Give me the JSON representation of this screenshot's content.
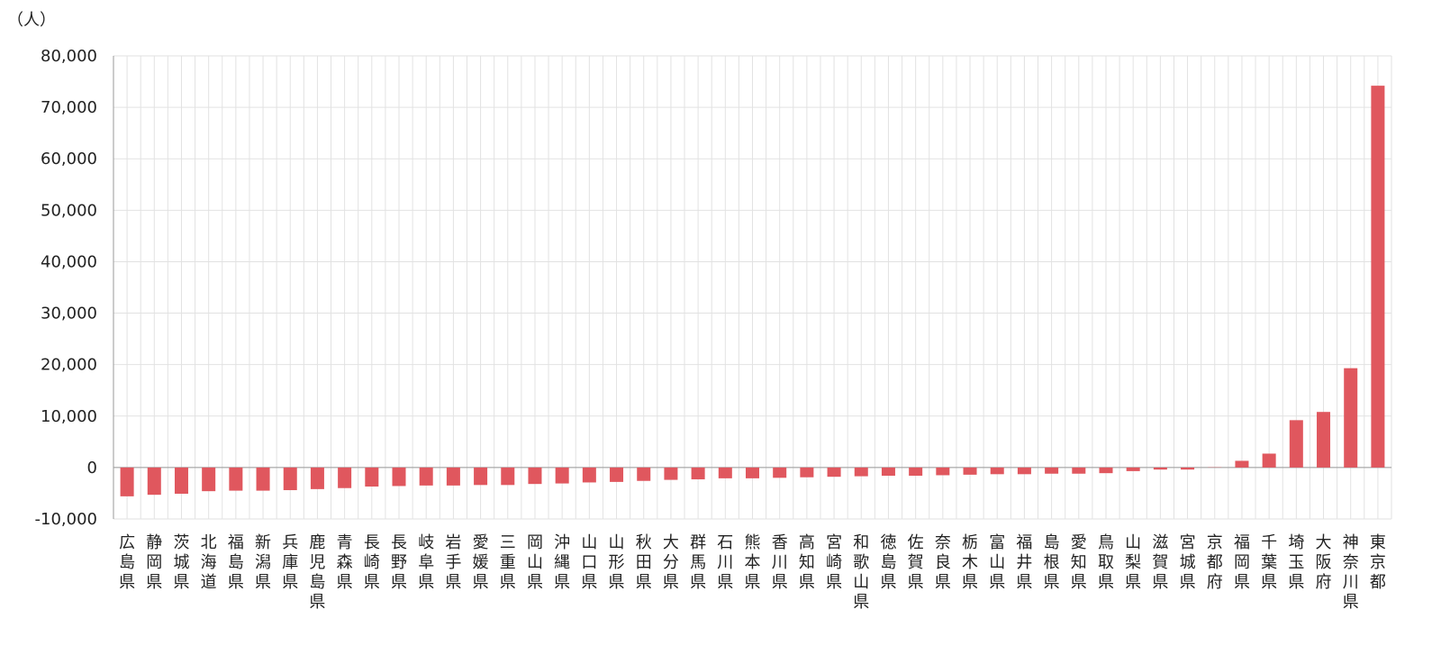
{
  "chart_data": {
    "type": "bar",
    "y_unit_label": "（人）",
    "categories": [
      "広島県",
      "静岡県",
      "茨城県",
      "北海道",
      "福島県",
      "新潟県",
      "兵庫県",
      "鹿児島県",
      "青森県",
      "長崎県",
      "長野県",
      "岐阜県",
      "岩手県",
      "愛媛県",
      "三重県",
      "岡山県",
      "沖縄県",
      "山口県",
      "山形県",
      "秋田県",
      "大分県",
      "群馬県",
      "石川県",
      "熊本県",
      "香川県",
      "高知県",
      "宮崎県",
      "和歌山県",
      "徳島県",
      "佐賀県",
      "奈良県",
      "栃木県",
      "富山県",
      "福井県",
      "島根県",
      "愛知県",
      "鳥取県",
      "山梨県",
      "滋賀県",
      "宮城県",
      "京都府",
      "福岡県",
      "千葉県",
      "埼玉県",
      "大阪府",
      "神奈川県",
      "東京都"
    ],
    "values": [
      -5600,
      -5300,
      -5100,
      -4600,
      -4500,
      -4500,
      -4400,
      -4200,
      -4000,
      -3700,
      -3600,
      -3500,
      -3500,
      -3400,
      -3400,
      -3200,
      -3100,
      -2900,
      -2800,
      -2600,
      -2400,
      -2300,
      -2100,
      -2100,
      -2000,
      -1900,
      -1800,
      -1700,
      -1600,
      -1600,
      -1500,
      -1400,
      -1300,
      -1300,
      -1200,
      -1200,
      -1100,
      -700,
      -400,
      -400,
      50,
      1300,
      2700,
      9200,
      10800,
      19300,
      74200
    ],
    "color": "#e0575e",
    "ylim": [
      -10000,
      80000
    ],
    "yticks": [
      {
        "value": -10000,
        "label": "-10,000"
      },
      0,
      {
        "value": 10000,
        "label": "10,000"
      },
      {
        "value": 20000,
        "label": "20,000"
      },
      {
        "value": 30000,
        "label": "30,000"
      },
      {
        "value": 40000,
        "label": "40,000"
      },
      {
        "value": 50000,
        "label": "50,000"
      },
      {
        "value": 60000,
        "label": "60,000"
      },
      {
        "value": 70000,
        "label": "70,000"
      },
      {
        "value": 80000,
        "label": "80,000"
      }
    ],
    "grid": true
  }
}
